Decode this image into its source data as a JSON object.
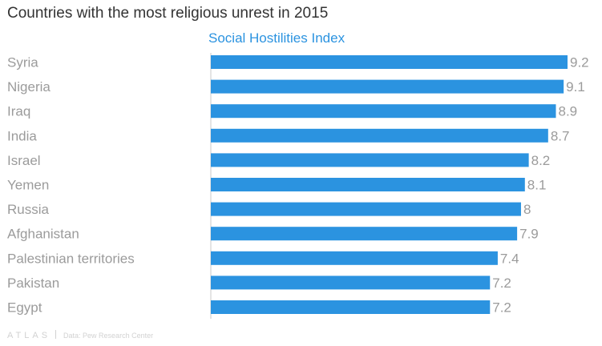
{
  "chart_data": {
    "type": "bar",
    "orientation": "horizontal",
    "title": "Countries with the most religious unrest in 2015",
    "series": [
      {
        "name": "Social Hostilities Index",
        "values": [
          9.2,
          9.1,
          8.9,
          8.7,
          8.2,
          8.1,
          8,
          7.9,
          7.4,
          7.2,
          7.2
        ]
      }
    ],
    "categories": [
      "Syria",
      "Nigeria",
      "Iraq",
      "India",
      "Israel",
      "Yemen",
      "Russia",
      "Afghanistan",
      "Palestinian territories",
      "Pakistan",
      "Egypt"
    ],
    "value_labels": [
      "9.2",
      "9.1",
      "8.9",
      "8.7",
      "8.2",
      "8.1",
      "8",
      "7.9",
      "7.4",
      "7.2",
      "7.2"
    ],
    "xlim": [
      0,
      9.2
    ],
    "grid": false,
    "colors": {
      "bar": "#2b93e0",
      "subtitle": "#2b93e0",
      "category_text": "#9b9b9b",
      "value_text": "#9b9b9b"
    }
  },
  "footer": {
    "brand": "ATLAS",
    "source": "Data: Pew Research Center"
  }
}
